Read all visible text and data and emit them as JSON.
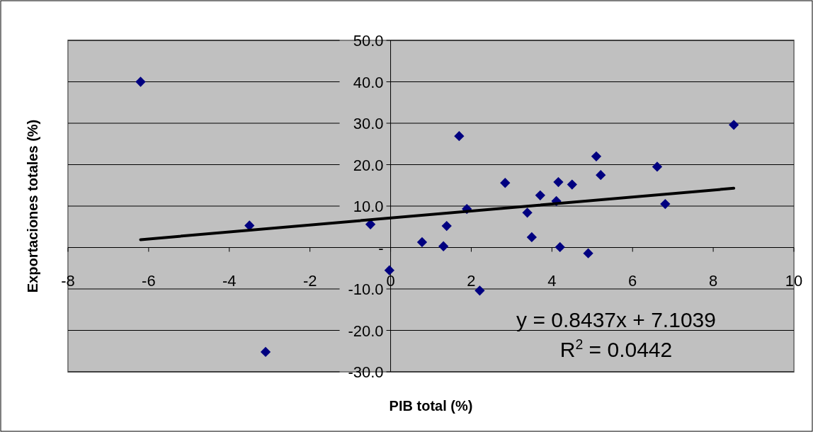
{
  "chart_data": {
    "type": "scatter",
    "xlabel": "PIB total (%)",
    "ylabel": "Exportaciones totales (%)",
    "xlim": [
      -8,
      10
    ],
    "xticks": [
      -8,
      -6,
      -4,
      -2,
      0,
      2,
      4,
      6,
      8,
      10
    ],
    "ylim": [
      -30,
      50
    ],
    "yticks": [
      {
        "value": -30,
        "label": "-30.0"
      },
      {
        "value": -20,
        "label": "-20.0"
      },
      {
        "value": -10,
        "label": "-10.0"
      },
      {
        "value": 0,
        "label": "-"
      },
      {
        "value": 10,
        "label": "10.0"
      },
      {
        "value": 20,
        "label": "20.0"
      },
      {
        "value": 30,
        "label": "30.0"
      },
      {
        "value": 40,
        "label": "40.0"
      },
      {
        "value": 50,
        "label": "50.0"
      }
    ],
    "grid": "y",
    "legend": false,
    "series": [
      {
        "marker": "diamond",
        "color": "#000080",
        "x": [
          -6.2,
          -3.5,
          -3.1,
          -0.5,
          -0.03,
          0.78,
          1.31,
          1.39,
          1.7,
          1.89,
          2.21,
          2.84,
          3.39,
          3.5,
          3.71,
          4.11,
          4.16,
          4.2,
          4.5,
          4.9,
          5.1,
          5.21,
          6.61,
          6.81,
          8.51
        ],
        "values": [
          40.0,
          5.3,
          -25.2,
          5.6,
          -5.5,
          1.3,
          0.3,
          5.2,
          26.9,
          9.3,
          -10.4,
          15.6,
          8.4,
          2.5,
          12.6,
          11.2,
          15.8,
          0.1,
          15.2,
          -1.4,
          22.0,
          17.5,
          19.5,
          10.5,
          29.6
        ]
      },
      {
        "type": "line",
        "color": "#000000",
        "x": [
          -6.2,
          8.51
        ],
        "values": [
          1.9,
          14.3
        ]
      }
    ],
    "annotations": [
      "y = 0.8437x + 7.1039",
      "R$^{2}$ = 0.0442"
    ]
  }
}
